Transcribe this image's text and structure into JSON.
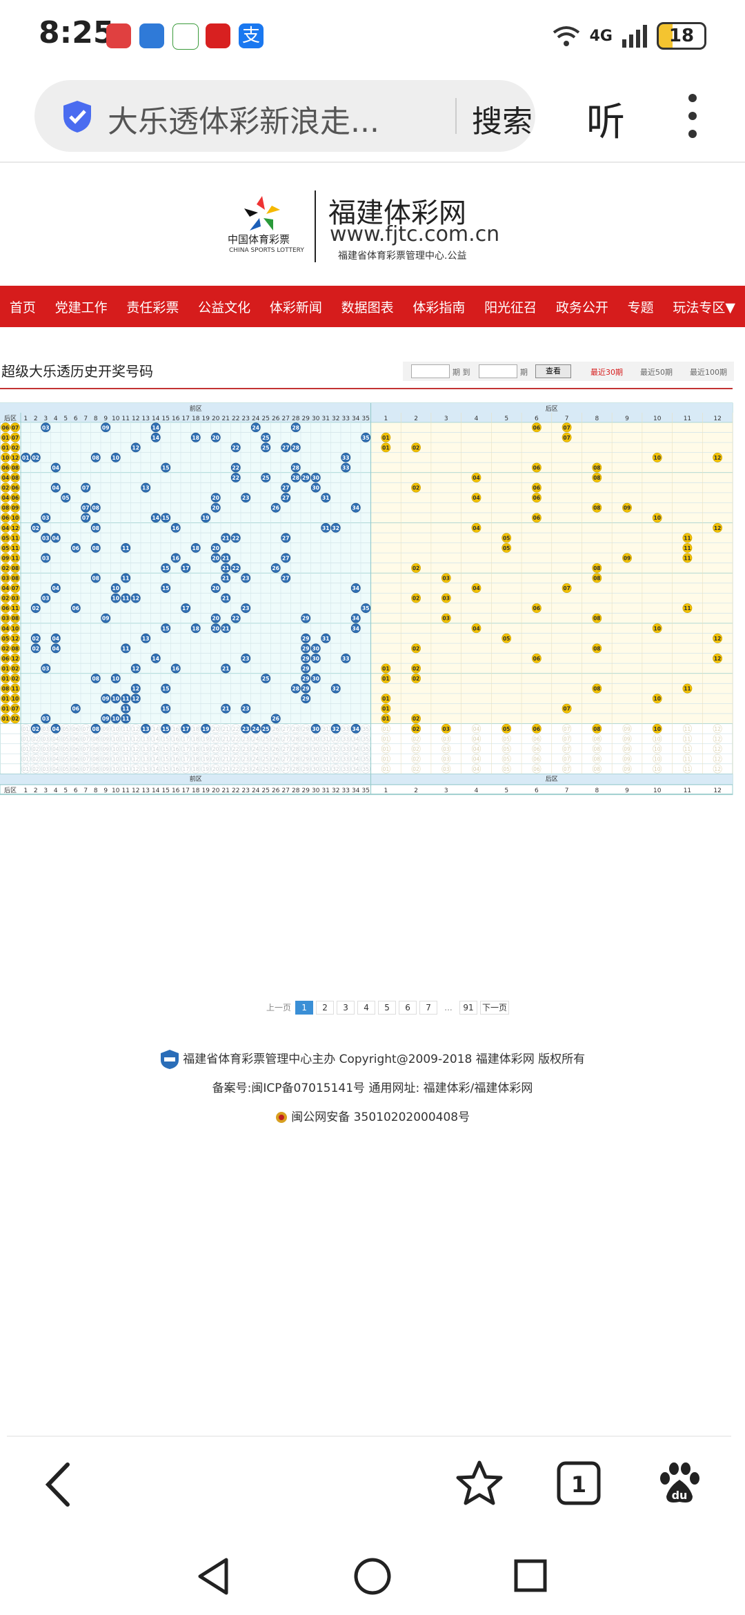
{
  "status_bar": {
    "time": "8:25",
    "network": "4G",
    "battery": "18"
  },
  "browser": {
    "url_text": "大乐透体彩新浪走...",
    "search_label": "搜索",
    "listen_label": "听"
  },
  "site": {
    "logo_cn": "中国体育彩票",
    "logo_en": "CHINA SPORTS LOTTERY",
    "name": "福建体彩网",
    "domain": "www.fjtc.com.cn",
    "subtitle": "福建省体育彩票管理中心.公益"
  },
  "nav": [
    "首页",
    "党建工作",
    "责任彩票",
    "公益文化",
    "体彩新闻",
    "数据图表",
    "体彩指南",
    "阳光征召",
    "政务公开",
    "专题",
    "玩法专区▼"
  ],
  "page_title": "超级大乐透历史开奖号码",
  "filter": {
    "period1": "期 到",
    "period2": "期",
    "query": "查看",
    "range30": "最近30期",
    "range50": "最近50期",
    "range100": "最近100期"
  },
  "table": {
    "front_label": "前区",
    "back_label": "后区",
    "row_label": "后区",
    "front_count": 35,
    "back_count": 12,
    "draws": [
      {
        "back": [
          6,
          7
        ],
        "front": [
          3,
          9,
          14,
          24,
          28
        ],
        "back_nums": [
          6,
          7
        ]
      },
      {
        "back": [
          1,
          7
        ],
        "front": [
          14,
          18,
          20,
          25,
          35
        ],
        "back_nums": [
          1,
          7
        ]
      },
      {
        "back": [
          1,
          2
        ],
        "front": [
          12,
          22,
          25,
          27,
          28
        ],
        "back_nums": [
          1,
          2
        ]
      },
      {
        "back": [
          10,
          12
        ],
        "front": [
          1,
          2,
          8,
          10,
          33
        ],
        "back_nums": [
          10,
          12
        ]
      },
      {
        "back": [
          6,
          8
        ],
        "front": [
          4,
          15,
          22,
          28,
          33
        ],
        "back_nums": [
          6,
          8
        ]
      },
      {
        "back": [
          4,
          8
        ],
        "front": [
          22,
          25,
          28,
          29,
          30
        ],
        "back_nums": [
          4,
          8
        ]
      },
      {
        "back": [
          2,
          6
        ],
        "front": [
          4,
          7,
          13,
          27,
          30
        ],
        "back_nums": [
          2,
          6
        ]
      },
      {
        "back": [
          4,
          6
        ],
        "front": [
          5,
          20,
          23,
          27,
          31
        ],
        "back_nums": [
          4,
          6
        ]
      },
      {
        "back": [
          8,
          9
        ],
        "front": [
          7,
          8,
          20,
          26,
          34
        ],
        "back_nums": [
          8,
          9
        ]
      },
      {
        "back": [
          6,
          10
        ],
        "front": [
          3,
          7,
          14,
          15,
          19
        ],
        "back_nums": [
          6,
          10
        ]
      },
      {
        "back": [
          4,
          12
        ],
        "front": [
          2,
          8,
          16,
          31,
          32
        ],
        "back_nums": [
          4,
          12
        ]
      },
      {
        "back": [
          5,
          11
        ],
        "front": [
          3,
          4,
          21,
          22,
          27
        ],
        "back_nums": [
          5,
          11
        ]
      },
      {
        "back": [
          5,
          11
        ],
        "front": [
          6,
          8,
          11,
          18,
          20
        ],
        "back_nums": [
          5,
          11
        ]
      },
      {
        "back": [
          9,
          11
        ],
        "front": [
          3,
          16,
          20,
          21,
          27
        ],
        "back_nums": [
          9,
          11
        ]
      },
      {
        "back": [
          2,
          8
        ],
        "front": [
          15,
          17,
          21,
          22,
          26
        ],
        "back_nums": [
          2,
          8
        ]
      },
      {
        "back": [
          3,
          8
        ],
        "front": [
          8,
          11,
          21,
          23,
          27
        ],
        "back_nums": [
          3,
          8
        ]
      },
      {
        "back": [
          4,
          7
        ],
        "front": [
          4,
          10,
          15,
          20,
          34
        ],
        "back_nums": [
          4,
          7
        ]
      },
      {
        "back": [
          2,
          3
        ],
        "front": [
          3,
          10,
          11,
          12,
          21
        ],
        "back_nums": [
          2,
          3
        ]
      },
      {
        "back": [
          6,
          11
        ],
        "front": [
          2,
          6,
          17,
          23,
          35
        ],
        "back_nums": [
          6,
          11
        ]
      },
      {
        "back": [
          3,
          8
        ],
        "front": [
          9,
          20,
          22,
          29,
          34
        ],
        "back_nums": [
          3,
          8
        ]
      },
      {
        "back": [
          4,
          10
        ],
        "front": [
          15,
          18,
          20,
          21,
          34
        ],
        "back_nums": [
          4,
          10
        ]
      },
      {
        "back": [
          5,
          12
        ],
        "front": [
          2,
          4,
          13,
          29,
          31
        ],
        "back_nums": [
          5,
          12
        ]
      },
      {
        "back": [
          2,
          8
        ],
        "front": [
          2,
          4,
          11,
          29,
          30
        ],
        "back_nums": [
          2,
          8
        ]
      },
      {
        "back": [
          6,
          12
        ],
        "front": [
          14,
          23,
          29,
          30,
          33
        ],
        "back_nums": [
          6,
          12
        ]
      },
      {
        "back": [
          1,
          2
        ],
        "front": [
          3,
          12,
          16,
          21,
          29
        ],
        "back_nums": [
          1,
          2
        ]
      },
      {
        "back": [
          1,
          2
        ],
        "front": [
          8,
          10,
          25,
          29,
          30
        ],
        "back_nums": [
          1,
          2
        ]
      },
      {
        "back": [
          8,
          11
        ],
        "front": [
          12,
          15,
          28,
          29,
          32
        ],
        "back_nums": [
          8,
          11
        ]
      },
      {
        "back": [
          1,
          10
        ],
        "front": [
          9,
          10,
          11,
          12,
          29
        ],
        "back_nums": [
          1,
          10
        ]
      },
      {
        "back": [
          1,
          7
        ],
        "front": [
          6,
          11,
          15,
          21,
          23
        ],
        "back_nums": [
          1,
          7
        ]
      },
      {
        "back": [
          1,
          2
        ],
        "front": [
          3,
          9,
          10,
          11,
          26
        ],
        "back_nums": [
          1,
          2
        ]
      }
    ],
    "stats_front_marked": [
      2,
      4,
      8,
      13,
      15,
      17,
      19,
      23,
      24,
      25,
      30,
      32,
      34
    ],
    "stats_back_marked": [
      2,
      3,
      5,
      6,
      8,
      10
    ]
  },
  "pager": {
    "prev": "上一页",
    "pages": [
      "1",
      "2",
      "3",
      "4",
      "5",
      "6",
      "7"
    ],
    "ellipsis": "...",
    "last": "91",
    "next": "下一页"
  },
  "footer": {
    "line1": "福建省体育彩票管理中心主办 Copyright@2009-2018 福建体彩网 版权所有",
    "line2": "备案号:闽ICP备07015141号    通用网址:  福建体彩/福建体彩网",
    "line3": "闽公网安备 35010202000408号"
  },
  "colors": {
    "nav_red": "#d61c1c",
    "front_ball": "#2f6fb3",
    "back_ball": "#f2c200",
    "front_bg": "#eefbfb",
    "back_bg": "#fffbe8"
  },
  "icons": [
    "back-icon",
    "star-icon",
    "tabs-icon",
    "baidu-paw-icon",
    "nav-back-icon",
    "home-icon",
    "recents-icon"
  ]
}
